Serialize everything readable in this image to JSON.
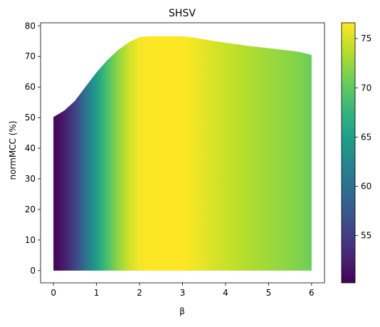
{
  "chart_data": {
    "type": "area",
    "title": "SHSV",
    "xlabel": "β",
    "ylabel": "normMCC (%)",
    "xlim": [
      -0.3,
      6.3
    ],
    "ylim": [
      -4,
      81
    ],
    "x_ticks": [
      0,
      1,
      2,
      3,
      4,
      5,
      6
    ],
    "y_ticks": [
      0,
      10,
      20,
      30,
      40,
      50,
      60,
      70,
      80
    ],
    "x": [
      0,
      0.25,
      0.5,
      0.75,
      1.0,
      1.25,
      1.5,
      1.75,
      2.0,
      2.25,
      2.5,
      2.75,
      3.0,
      3.25,
      3.5,
      3.75,
      4.0,
      4.25,
      4.5,
      4.75,
      5.0,
      5.25,
      5.5,
      5.75,
      6.0
    ],
    "values": [
      50.2,
      52.3,
      55.5,
      60.2,
      64.8,
      68.8,
      72.1,
      74.6,
      76.3,
      76.6,
      76.6,
      76.6,
      76.6,
      76.2,
      75.6,
      75.0,
      74.5,
      74.0,
      73.5,
      73.1,
      72.7,
      72.3,
      71.9,
      71.4,
      70.5
    ],
    "baseline": 0,
    "color_encoding": "viridis",
    "colorbar": {
      "range": [
        50.2,
        76.6
      ],
      "ticks": [
        55,
        60,
        65,
        70,
        75
      ]
    },
    "grid": false
  }
}
